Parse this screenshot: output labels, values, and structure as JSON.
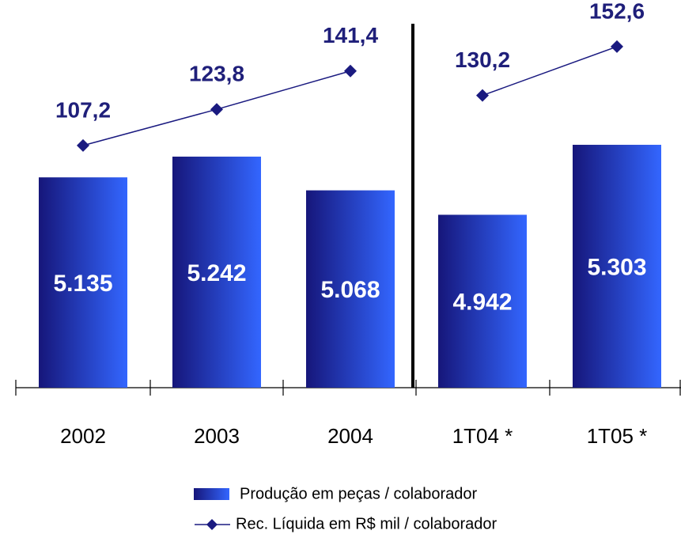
{
  "chart_data": {
    "type": "bar_line",
    "categories": [
      "2002",
      "2003",
      "2004",
      "1T04 *",
      "1T05 *"
    ],
    "series": [
      {
        "name": "Produção em peças / colaborador",
        "type": "bar",
        "color": "#3366ff",
        "values": [
          5135,
          5242,
          5068,
          4942,
          5303
        ],
        "value_labels": [
          "5.135",
          "5.242",
          "5.068",
          "4.942",
          "5.303"
        ]
      },
      {
        "name": "Rec. Líquida em R$ mil / colaborador",
        "type": "line",
        "axis": "y2",
        "color": "#1a1a80",
        "values": [
          107.2,
          123.8,
          141.4,
          130.2,
          152.6
        ],
        "value_labels": [
          "107,2",
          "123,8",
          "141,4",
          "130,2",
          "152,6"
        ]
      }
    ],
    "ylim": [
      4050,
      6050
    ],
    "y2lim": [
      -4,
      174
    ]
  }
}
